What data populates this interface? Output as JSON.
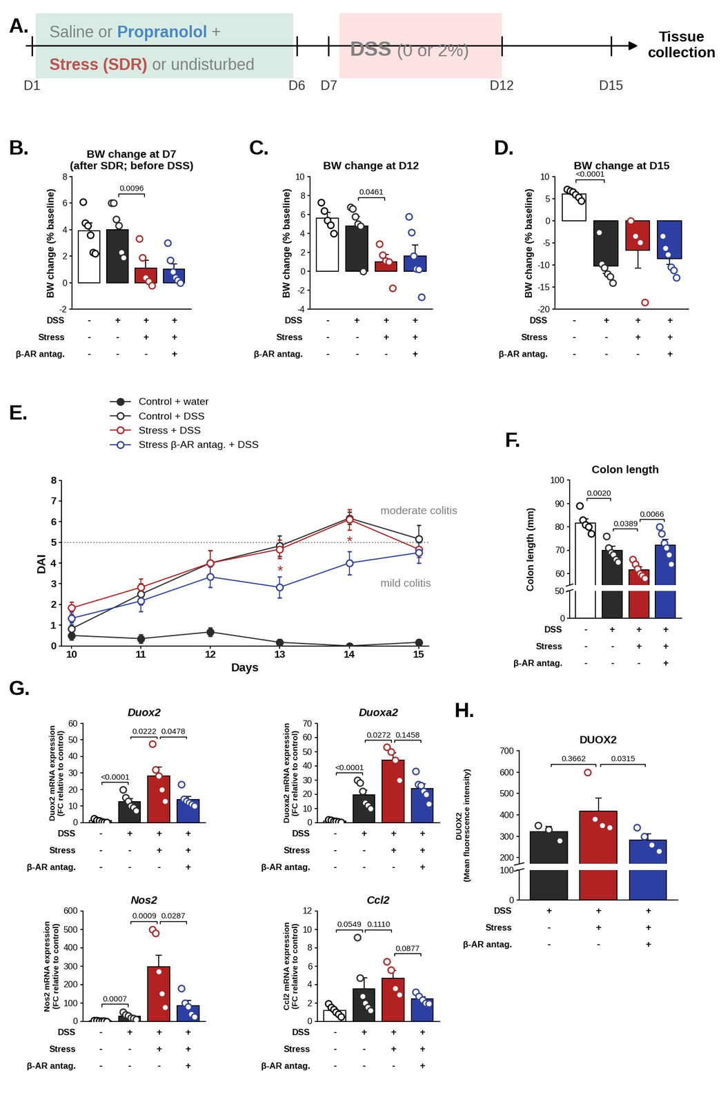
{
  "timeline": {
    "panel": "A.",
    "treatment": [
      [
        {
          "text": "Saline or ",
          "color": "#808080",
          "weight": "normal"
        },
        {
          "text": "Propranolol",
          "color": "#4a86c8",
          "weight": "bold"
        },
        {
          "text": " +",
          "color": "#808080",
          "weight": "normal"
        }
      ],
      [
        {
          "text": "Stress (SDR)",
          "color": "#c0504d",
          "weight": "bold"
        },
        {
          "text": " or undisturbed",
          "color": "#808080",
          "weight": "normal"
        }
      ]
    ],
    "dss": [
      {
        "text": "DSS",
        "color": "#808080",
        "weight": "bold"
      },
      {
        "text": " (0 or 2%)",
        "color": "#808080",
        "weight": "normal"
      }
    ],
    "days": [
      "D1",
      "D6",
      "D7",
      "D12",
      "D15"
    ],
    "end_label": "Tissue\ncollection"
  },
  "chart_data": [
    {
      "type": "bar",
      "panel": "B.",
      "title": "BW change at D7\n(after SDR; before DSS)",
      "y_label": "BW change (% baseline)",
      "categories": [
        null,
        null,
        null,
        null
      ],
      "values": [
        3.9,
        4.0,
        1.1,
        1.0
      ],
      "errors": [
        0.6,
        0.7,
        0.6,
        0.4
      ],
      "points": [
        [
          6.1,
          4.5,
          4.3,
          3.6,
          2.3,
          2.2
        ],
        [
          6.0,
          6.0,
          4.8,
          4.3,
          2.3,
          1.9
        ],
        [
          3.3,
          1.9,
          0.4,
          0.1,
          -0.2
        ],
        [
          3.0,
          1.7,
          0.8,
          0.4,
          0.2,
          0.0
        ]
      ],
      "colors": [
        "#ffffff",
        "#2b2b2b",
        "#b22222",
        "#2e3fa3"
      ],
      "conditions": [
        {
          "label": "DSS",
          "marks": [
            "-",
            "+",
            "+",
            "+"
          ]
        },
        {
          "label": "Stress",
          "marks": [
            "-",
            "-",
            "+",
            "+"
          ]
        },
        {
          "label": "β-AR antag.",
          "marks": [
            "-",
            "-",
            "-",
            "+"
          ]
        }
      ],
      "comparisons": [
        {
          "from": 1,
          "to": 2,
          "label": "0.0096"
        }
      ],
      "ylim": [
        -2,
        8
      ],
      "yticks": [
        -2,
        0,
        2,
        4,
        6,
        8
      ]
    },
    {
      "type": "bar",
      "panel": "C.",
      "title": "BW change at D12",
      "y_label": "BW change (% baseline)",
      "categories": [
        null,
        null,
        null,
        null
      ],
      "values": [
        5.6,
        4.8,
        1.0,
        1.6
      ],
      "errors": [
        0.6,
        1.0,
        0.8,
        1.2
      ],
      "points": [
        [
          7.3,
          6.4,
          5.4,
          4.9,
          4.0
        ],
        [
          6.8,
          6.6,
          5.8,
          5.0,
          4.8,
          0.0
        ],
        [
          2.9,
          1.7,
          1.1,
          1.0,
          -1.8
        ],
        [
          5.8,
          4.1,
          1.6,
          0.3,
          0.2,
          -2.7
        ]
      ],
      "colors": [
        "#ffffff",
        "#2b2b2b",
        "#b22222",
        "#2e3fa3"
      ],
      "conditions": [
        {
          "label": "DSS",
          "marks": [
            "-",
            "+",
            "+",
            "+"
          ]
        },
        {
          "label": "Stress",
          "marks": [
            "-",
            "-",
            "+",
            "+"
          ]
        },
        {
          "label": "β-AR antag.",
          "marks": [
            "-",
            "-",
            "-",
            "+"
          ]
        }
      ],
      "comparisons": [
        {
          "from": 1,
          "to": 2,
          "label": "0.0461"
        }
      ],
      "ylim": [
        -4,
        10
      ],
      "yticks": [
        -4,
        -2,
        0,
        2,
        4,
        6,
        8,
        10
      ]
    },
    {
      "type": "bar",
      "panel": "D.",
      "title": "BW change at D15",
      "y_label": "BW change (% baseline)",
      "categories": [
        null,
        null,
        null,
        null
      ],
      "values": [
        6.1,
        -10.2,
        -6.7,
        -8.6
      ],
      "errors": [
        0.5,
        1.7,
        4.0,
        1.3
      ],
      "points": [
        [
          7.2,
          6.8,
          6.6,
          6.0,
          5.3,
          4.5
        ],
        [
          -2.6,
          -9.8,
          -10.6,
          -12.0,
          -12.6,
          -14.0
        ],
        [
          0.0,
          -3.4,
          -4.9,
          -18.4
        ],
        [
          -3.4,
          -6.2,
          -7.6,
          -10.5,
          -11.2,
          -12.8
        ]
      ],
      "colors": [
        "#ffffff",
        "#2b2b2b",
        "#b22222",
        "#2e3fa3"
      ],
      "conditions": [
        {
          "label": "DSS",
          "marks": [
            "-",
            "+",
            "+",
            "+"
          ]
        },
        {
          "label": "Stress",
          "marks": [
            "-",
            "-",
            "+",
            "+"
          ]
        },
        {
          "label": "β-AR antag.",
          "marks": [
            "-",
            "-",
            "-",
            "+"
          ]
        }
      ],
      "comparisons": [
        {
          "from": 0,
          "to": 1,
          "label": "<0.0001"
        }
      ],
      "ylim": [
        -20,
        10
      ],
      "yticks": [
        -20,
        -15,
        -10,
        -5,
        0,
        5,
        10
      ]
    },
    {
      "type": "line",
      "panel": "E.",
      "x_label": "Days",
      "y_label": "DAI",
      "x": [
        10,
        11,
        12,
        13,
        14,
        15
      ],
      "series": [
        {
          "name": "Control + water",
          "color": "#2b2b2b",
          "marker": "filled",
          "values": [
            0.5,
            0.35,
            0.67,
            0.17,
            0.0,
            0.17
          ],
          "errors": [
            0.2,
            0.2,
            0.2,
            0.15,
            0.0,
            0.15
          ]
        },
        {
          "name": "Control + DSS",
          "color": "#2b2b2b",
          "marker": "open",
          "values": [
            0.83,
            2.5,
            4.0,
            4.83,
            6.17,
            5.17
          ],
          "errors": [
            0.3,
            0.5,
            0.6,
            0.5,
            0.3,
            0.65
          ]
        },
        {
          "name": "Stress + DSS",
          "color": "#b22222",
          "marker": "open",
          "values": [
            1.83,
            2.83,
            4.0,
            4.67,
            6.1,
            4.67
          ],
          "errors": [
            0.3,
            0.4,
            0.6,
            0.45,
            0.5,
            0.4
          ]
        },
        {
          "name": "Stress β-AR antag. + DSS",
          "color": "#2e3fa3",
          "marker": "open",
          "values": [
            1.33,
            2.17,
            3.33,
            2.83,
            4.0,
            4.5
          ],
          "errors": [
            0.3,
            0.5,
            0.5,
            0.5,
            0.55,
            0.5
          ]
        }
      ],
      "reference_line": 5,
      "annotations": [
        {
          "x": 13,
          "y": 3.6,
          "text": "*",
          "color": "#b22222"
        },
        {
          "x": 14,
          "y": 5.0,
          "text": "*",
          "color": "#b22222"
        },
        {
          "x": 14.45,
          "y": 6.5,
          "text": "moderate colitis",
          "color": "#808080"
        },
        {
          "x": 14.45,
          "y": 3.0,
          "text": "mild colitis",
          "color": "#808080"
        }
      ],
      "legend": "upper left",
      "xlim": [
        9.85,
        15.15
      ],
      "xticks": [
        10,
        11,
        12,
        13,
        14,
        15
      ],
      "ylim": [
        0,
        8
      ],
      "yticks": [
        0,
        1,
        2,
        3,
        4,
        5,
        6,
        7,
        8
      ]
    },
    {
      "type": "bar",
      "panel": "F.",
      "title": "Colon length",
      "y_label": "Colon length (mm)",
      "categories": [
        null,
        null,
        null,
        null
      ],
      "values": [
        81.6,
        69.8,
        61.5,
        72.2
      ],
      "errors": [
        1.9,
        1.8,
        1.3,
        2.4
      ],
      "points": [
        [
          89,
          83,
          81,
          80,
          77
        ],
        [
          76,
          71,
          69,
          68,
          66,
          65
        ],
        [
          66,
          64,
          62,
          60,
          59,
          58
        ],
        [
          80,
          77,
          73,
          71,
          68,
          64
        ]
      ],
      "colors": [
        "#ffffff",
        "#2b2b2b",
        "#b22222",
        "#2e3fa3"
      ],
      "conditions": [
        {
          "label": "DSS",
          "marks": [
            "-",
            "+",
            "+",
            "+"
          ]
        },
        {
          "label": "Stress",
          "marks": [
            "-",
            "-",
            "+",
            "+"
          ]
        },
        {
          "label": "β-AR antag.",
          "marks": [
            "-",
            "-",
            "-",
            "+"
          ]
        }
      ],
      "comparisons": [
        {
          "from": 0,
          "to": 1,
          "label": "0.0020"
        },
        {
          "from": 1,
          "to": 2,
          "label": "0.0389"
        },
        {
          "from": 2,
          "to": 3,
          "label": "0.0066"
        }
      ],
      "y_segments": [
        {
          "ylim": [
            0,
            50
          ],
          "yticks": [
            0,
            50
          ]
        },
        {
          "ylim": [
            55,
            100
          ],
          "yticks": [
            60,
            70,
            80,
            90,
            100
          ]
        }
      ]
    },
    {
      "type": "bar",
      "panel": "G.",
      "title": "Duox2",
      "y_label": "Duox2 mRNA expression\n(FC relative to control)",
      "categories": [
        null,
        null,
        null,
        null
      ],
      "values": [
        1.0,
        12.5,
        28.0,
        13.8
      ],
      "errors": [
        0.4,
        2.0,
        5.5,
        2.0
      ],
      "points": [
        [
          2.5,
          1.5,
          1.0,
          0.5,
          0.3,
          0.2
        ],
        [
          20,
          15,
          13,
          10,
          9,
          7
        ],
        [
          47.5,
          32,
          28,
          20,
          13
        ],
        [
          23,
          14,
          13,
          12,
          11,
          10
        ]
      ],
      "colors": [
        "#ffffff",
        "#2b2b2b",
        "#b22222",
        "#2e3fa3"
      ],
      "conditions": [
        {
          "label": "DSS",
          "marks": [
            "-",
            "+",
            "+",
            "+"
          ]
        },
        {
          "label": "Stress",
          "marks": [
            "-",
            "-",
            "+",
            "+"
          ]
        },
        {
          "label": "β-AR antag.",
          "marks": [
            "-",
            "-",
            "-",
            "+"
          ]
        }
      ],
      "comparisons": [
        {
          "from": 0,
          "to": 1,
          "label": "<0.0001"
        },
        {
          "from": 1,
          "to": 2,
          "label": "0.0222"
        },
        {
          "from": 2,
          "to": 3,
          "label": "0.0478"
        }
      ],
      "ylim": [
        0,
        60
      ],
      "yticks": [
        0,
        10,
        20,
        30,
        40,
        50,
        60
      ]
    },
    {
      "type": "bar",
      "title": "Duoxa2",
      "y_label": "Duoxa2 mRNA expression\n(FC relative to control)",
      "categories": [
        null,
        null,
        null,
        null
      ],
      "values": [
        1.0,
        19.3,
        44.0,
        24.0
      ],
      "errors": [
        0.3,
        3.4,
        5.0,
        3.2
      ],
      "points": [
        [
          2.0,
          1.5,
          1.0,
          0.8,
          0.5,
          0.2
        ],
        [
          30,
          28,
          22,
          14,
          12,
          10
        ],
        [
          53,
          50,
          44,
          30
        ],
        [
          36,
          27,
          26,
          22,
          20,
          13
        ]
      ],
      "colors": [
        "#ffffff",
        "#2b2b2b",
        "#b22222",
        "#2e3fa3"
      ],
      "conditions": [
        {
          "label": "DSS",
          "marks": [
            "-",
            "+",
            "+",
            "+"
          ]
        },
        {
          "label": "Stress",
          "marks": [
            "-",
            "-",
            "+",
            "+"
          ]
        },
        {
          "label": "β-AR antag.",
          "marks": [
            "-",
            "-",
            "-",
            "+"
          ]
        }
      ],
      "comparisons": [
        {
          "from": 0,
          "to": 1,
          "label": "<0.0001"
        },
        {
          "from": 1,
          "to": 2,
          "label": "0.0272"
        },
        {
          "from": 2,
          "to": 3,
          "label": "0.1458"
        }
      ],
      "ylim": [
        0,
        70
      ],
      "yticks": [
        0,
        10,
        20,
        30,
        40,
        50,
        60,
        70
      ]
    },
    {
      "type": "bar",
      "title": "Nos2",
      "y_label": "Nos2 mRNA expression\n(FC relative to control)",
      "categories": [
        null,
        null,
        null,
        null
      ],
      "values": [
        2.0,
        26.7,
        295,
        85
      ],
      "errors": [
        0.8,
        6.0,
        65,
        27
      ],
      "points": [
        [
          5,
          3,
          2,
          1,
          1,
          0
        ],
        [
          50,
          35,
          30,
          20,
          15,
          10
        ],
        [
          500,
          480,
          270,
          150,
          75
        ],
        [
          180,
          100,
          80,
          40,
          25
        ]
      ],
      "colors": [
        "#ffffff",
        "#2b2b2b",
        "#b22222",
        "#2e3fa3"
      ],
      "conditions": [
        {
          "label": "DSS",
          "marks": [
            "-",
            "+",
            "+",
            "+"
          ]
        },
        {
          "label": "Stress",
          "marks": [
            "-",
            "-",
            "+",
            "+"
          ]
        },
        {
          "label": "β-AR antag.",
          "marks": [
            "-",
            "-",
            "-",
            "+"
          ]
        }
      ],
      "comparisons": [
        {
          "from": 0,
          "to": 1,
          "label": "0.0007"
        },
        {
          "from": 1,
          "to": 2,
          "label": "0.0009"
        },
        {
          "from": 2,
          "to": 3,
          "label": "0.0287"
        }
      ],
      "ylim": [
        0,
        600
      ],
      "yticks": [
        0,
        100,
        200,
        300,
        400,
        500,
        600
      ]
    },
    {
      "type": "bar",
      "title": "Ccl2",
      "y_label": "Ccl2 mRNA expression\n(FC relative to control)",
      "categories": [
        null,
        null,
        null,
        null
      ],
      "values": [
        1.17,
        3.53,
        4.65,
        2.42
      ],
      "errors": [
        0.2,
        1.2,
        0.85,
        0.25
      ],
      "points": [
        [
          1.9,
          1.5,
          1.3,
          1.0,
          0.8,
          0.5
        ],
        [
          9.1,
          4.7,
          2.7,
          2.0,
          1.5,
          1.2
        ],
        [
          6.5,
          5.6,
          3.6,
          2.9
        ],
        [
          3.2,
          2.7,
          2.3,
          2.0,
          1.9
        ]
      ],
      "colors": [
        "#ffffff",
        "#2b2b2b",
        "#b22222",
        "#2e3fa3"
      ],
      "conditions": [
        {
          "label": "DSS",
          "marks": [
            "-",
            "+",
            "+",
            "+"
          ]
        },
        {
          "label": "Stress",
          "marks": [
            "-",
            "-",
            "+",
            "+"
          ]
        },
        {
          "label": "β-AR antag.",
          "marks": [
            "-",
            "-",
            "-",
            "+"
          ]
        }
      ],
      "comparisons": [
        {
          "from": 0,
          "to": 1,
          "label": "0.0549"
        },
        {
          "from": 1,
          "to": 2,
          "label": "0.1110"
        },
        {
          "from": 2,
          "to": 3,
          "label": "0.0877"
        }
      ],
      "ylim": [
        0,
        12
      ],
      "yticks": [
        0,
        2,
        4,
        6,
        8,
        10,
        12
      ]
    },
    {
      "type": "bar",
      "panel": "H.",
      "title": "DUOX2",
      "y_label": "DUOX2\n(Mean fluorescence intensity)",
      "categories": [
        null,
        null,
        null
      ],
      "values": [
        320,
        417,
        282
      ],
      "errors": [
        25,
        62,
        30
      ],
      "points": [
        [
          350,
          330,
          280
        ],
        [
          600,
          380,
          350,
          340
        ],
        [
          340,
          300,
          260,
          230
        ]
      ],
      "colors": [
        "#2b2b2b",
        "#b22222",
        "#2e3fa3"
      ],
      "conditions": [
        {
          "label": "DSS",
          "marks": [
            "+",
            "+",
            "+"
          ]
        },
        {
          "label": "Stress",
          "marks": [
            "-",
            "+",
            "+"
          ]
        },
        {
          "label": "β-AR antag.",
          "marks": [
            "-",
            "-",
            "+"
          ]
        }
      ],
      "comparisons": [
        {
          "from": 0,
          "to": 1,
          "label": "0.3662"
        },
        {
          "from": 1,
          "to": 2,
          "label": "0.0315"
        }
      ],
      "y_segments": [
        {
          "ylim": [
            0,
            100
          ],
          "yticks": [
            0,
            100
          ]
        },
        {
          "ylim": [
            170,
            700
          ],
          "yticks": [
            200,
            300,
            400,
            500,
            600,
            700
          ]
        }
      ]
    }
  ]
}
